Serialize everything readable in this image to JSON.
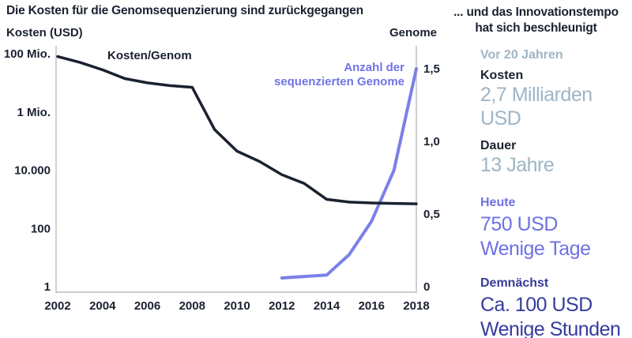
{
  "chart_data": {
    "type": "line",
    "title": "Die Kosten für die Genomsequenzierung sind zurückgegangen",
    "x_ticks": [
      2002,
      2004,
      2006,
      2008,
      2010,
      2012,
      2014,
      2016,
      2018
    ],
    "left_axis": {
      "title": "Kosten (USD)",
      "scale": "log",
      "range": [
        1,
        100000000
      ],
      "ticks": [
        {
          "label": "100 Mio.",
          "value": 100000000
        },
        {
          "label": "1 Mio.",
          "value": 1000000
        },
        {
          "label": "10.000",
          "value": 10000
        },
        {
          "label": "100",
          "value": 100
        },
        {
          "label": "1",
          "value": 1
        }
      ]
    },
    "right_axis": {
      "title": "Genome",
      "scale": "linear",
      "range": [
        0,
        1.5
      ],
      "ticks": [
        {
          "label": "1,5",
          "value": 1.5
        },
        {
          "label": "1,0",
          "value": 1.0
        },
        {
          "label": "0,5",
          "value": 0.5
        },
        {
          "label": "0",
          "value": 0
        }
      ]
    },
    "series": [
      {
        "name": "Kosten/Genom",
        "axis": "left",
        "color": "#1a2130",
        "x": [
          2002,
          2003,
          2004,
          2005,
          2006,
          2007,
          2008,
          2009,
          2010,
          2011,
          2012,
          2013,
          2014,
          2015,
          2016,
          2017,
          2018
        ],
        "values": [
          80000000,
          50000000,
          28000000,
          14000000,
          10000000,
          8000000,
          7000000,
          250000,
          45000,
          20000,
          7000,
          3500,
          1000,
          800,
          750,
          720,
          700
        ]
      },
      {
        "name": "Anzahl der sequenzierten Genome",
        "axis": "right",
        "color": "#7b80e9",
        "x": [
          2012,
          2013,
          2014,
          2015,
          2016,
          2017,
          2018
        ],
        "values": [
          0.06,
          0.07,
          0.08,
          0.22,
          0.45,
          0.8,
          1.5
        ]
      }
    ],
    "legend": {
      "cost_label": "Kosten/Genom",
      "genome_line1": "Anzahl der",
      "genome_line2": "sequenzierten Genome"
    }
  },
  "side_panel": {
    "title_line1": "... und das Innovationstempo",
    "title_line2": "hat sich beschleunigt",
    "colors": {
      "past": "#9db6c6",
      "today": "#6e72e3",
      "soon": "#363c9c"
    },
    "sections": [
      {
        "heading": "Vor 20 Jahren",
        "items": [
          {
            "label": "Kosten",
            "value": "2,7 Milliarden USD"
          },
          {
            "label": "Dauer",
            "value": "13 Jahre"
          }
        ]
      },
      {
        "heading": "Heute",
        "values": [
          "750 USD",
          "Wenige Tage"
        ]
      },
      {
        "heading": "Demnächst",
        "values": [
          "Ca. 100 USD",
          "Wenige Stunden"
        ]
      }
    ]
  }
}
